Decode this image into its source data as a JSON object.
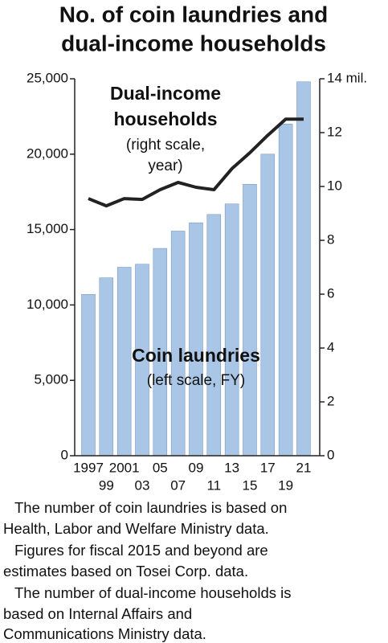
{
  "chart_data": {
    "type": "bar-line",
    "title": [
      "No. of coin laundries and",
      "dual-income households"
    ],
    "categories": [
      "1997",
      "99",
      "2001",
      "03",
      "05",
      "07",
      "09",
      "11",
      "13",
      "15",
      "17",
      "19",
      "21"
    ],
    "series": [
      {
        "name": "Coin laundries",
        "type": "bar",
        "color": "#a9c6e6",
        "values": [
          10700,
          11800,
          12500,
          12700,
          13750,
          14900,
          15450,
          16000,
          16700,
          18000,
          20000,
          22000,
          24800
        ]
      },
      {
        "name": "Dual-income households",
        "type": "line",
        "axis": "y2",
        "color": "#222222",
        "values": [
          9.55,
          9.28,
          9.55,
          9.52,
          9.88,
          10.15,
          9.97,
          9.88,
          10.66,
          11.25,
          11.9,
          12.5,
          12.5
        ]
      }
    ],
    "ylim": [
      0,
      25000
    ],
    "yticks": [
      0,
      {
        "value": 5000,
        "label": "5,000"
      },
      {
        "value": 10000,
        "label": "10,000"
      },
      {
        "value": 15000,
        "label": "15,000"
      },
      {
        "value": 20000,
        "label": "20,000"
      },
      {
        "value": 25000,
        "label": "25,000"
      }
    ],
    "y2lim": [
      0,
      14
    ],
    "y2ticks": [
      0,
      2,
      4,
      6,
      8,
      10,
      12,
      {
        "value": 14,
        "label": "14 mil."
      }
    ],
    "annotations": [
      "Dual-income",
      "households",
      "(right scale,",
      "year)",
      "(left scale, FY)"
    ],
    "notes": [
      "The number of coin laundries is based on",
      "Health, Labor and Welfare Ministry data.",
      "Figures for fiscal 2015 and beyond are",
      "estimates based on Tosei Corp. data.",
      "The number of dual-income households is",
      "based on Internal Affairs and",
      "Communications Ministry data."
    ]
  }
}
